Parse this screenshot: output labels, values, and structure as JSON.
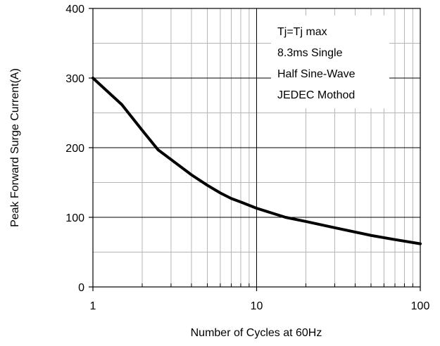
{
  "chart_data": {
    "type": "line",
    "title": "",
    "xlabel": "Number of Cycles at 60Hz",
    "ylabel": "Peak Forward Surge Current(A)",
    "xscale": "log",
    "xlim": [
      1,
      100
    ],
    "ylim": [
      0,
      400
    ],
    "x_ticks": [
      1,
      10,
      100
    ],
    "x_tick_labels": [
      "1",
      "10",
      "100"
    ],
    "y_ticks": [
      0,
      100,
      200,
      300,
      400
    ],
    "y_tick_labels": [
      "0",
      "100",
      "200",
      "300",
      "400"
    ],
    "grid": true,
    "colors": {
      "line": "#000000",
      "grid_major": "#000000",
      "grid_minor": "#b5b5b5"
    },
    "annotation": {
      "placement": "top-right",
      "lines": [
        "Tj=Tj max",
        "8.3ms Single",
        "Half Sine-Wave",
        "JEDEC Mothod"
      ]
    },
    "series": [
      {
        "x": [
          1,
          1.5,
          2,
          2.5,
          3,
          4,
          5,
          6,
          7,
          8,
          10,
          15,
          20,
          30,
          50,
          70,
          100
        ],
        "values": [
          300,
          262,
          225,
          197,
          183,
          161,
          146,
          135,
          127,
          122,
          113,
          100,
          94,
          85,
          74,
          68,
          62
        ]
      }
    ]
  }
}
